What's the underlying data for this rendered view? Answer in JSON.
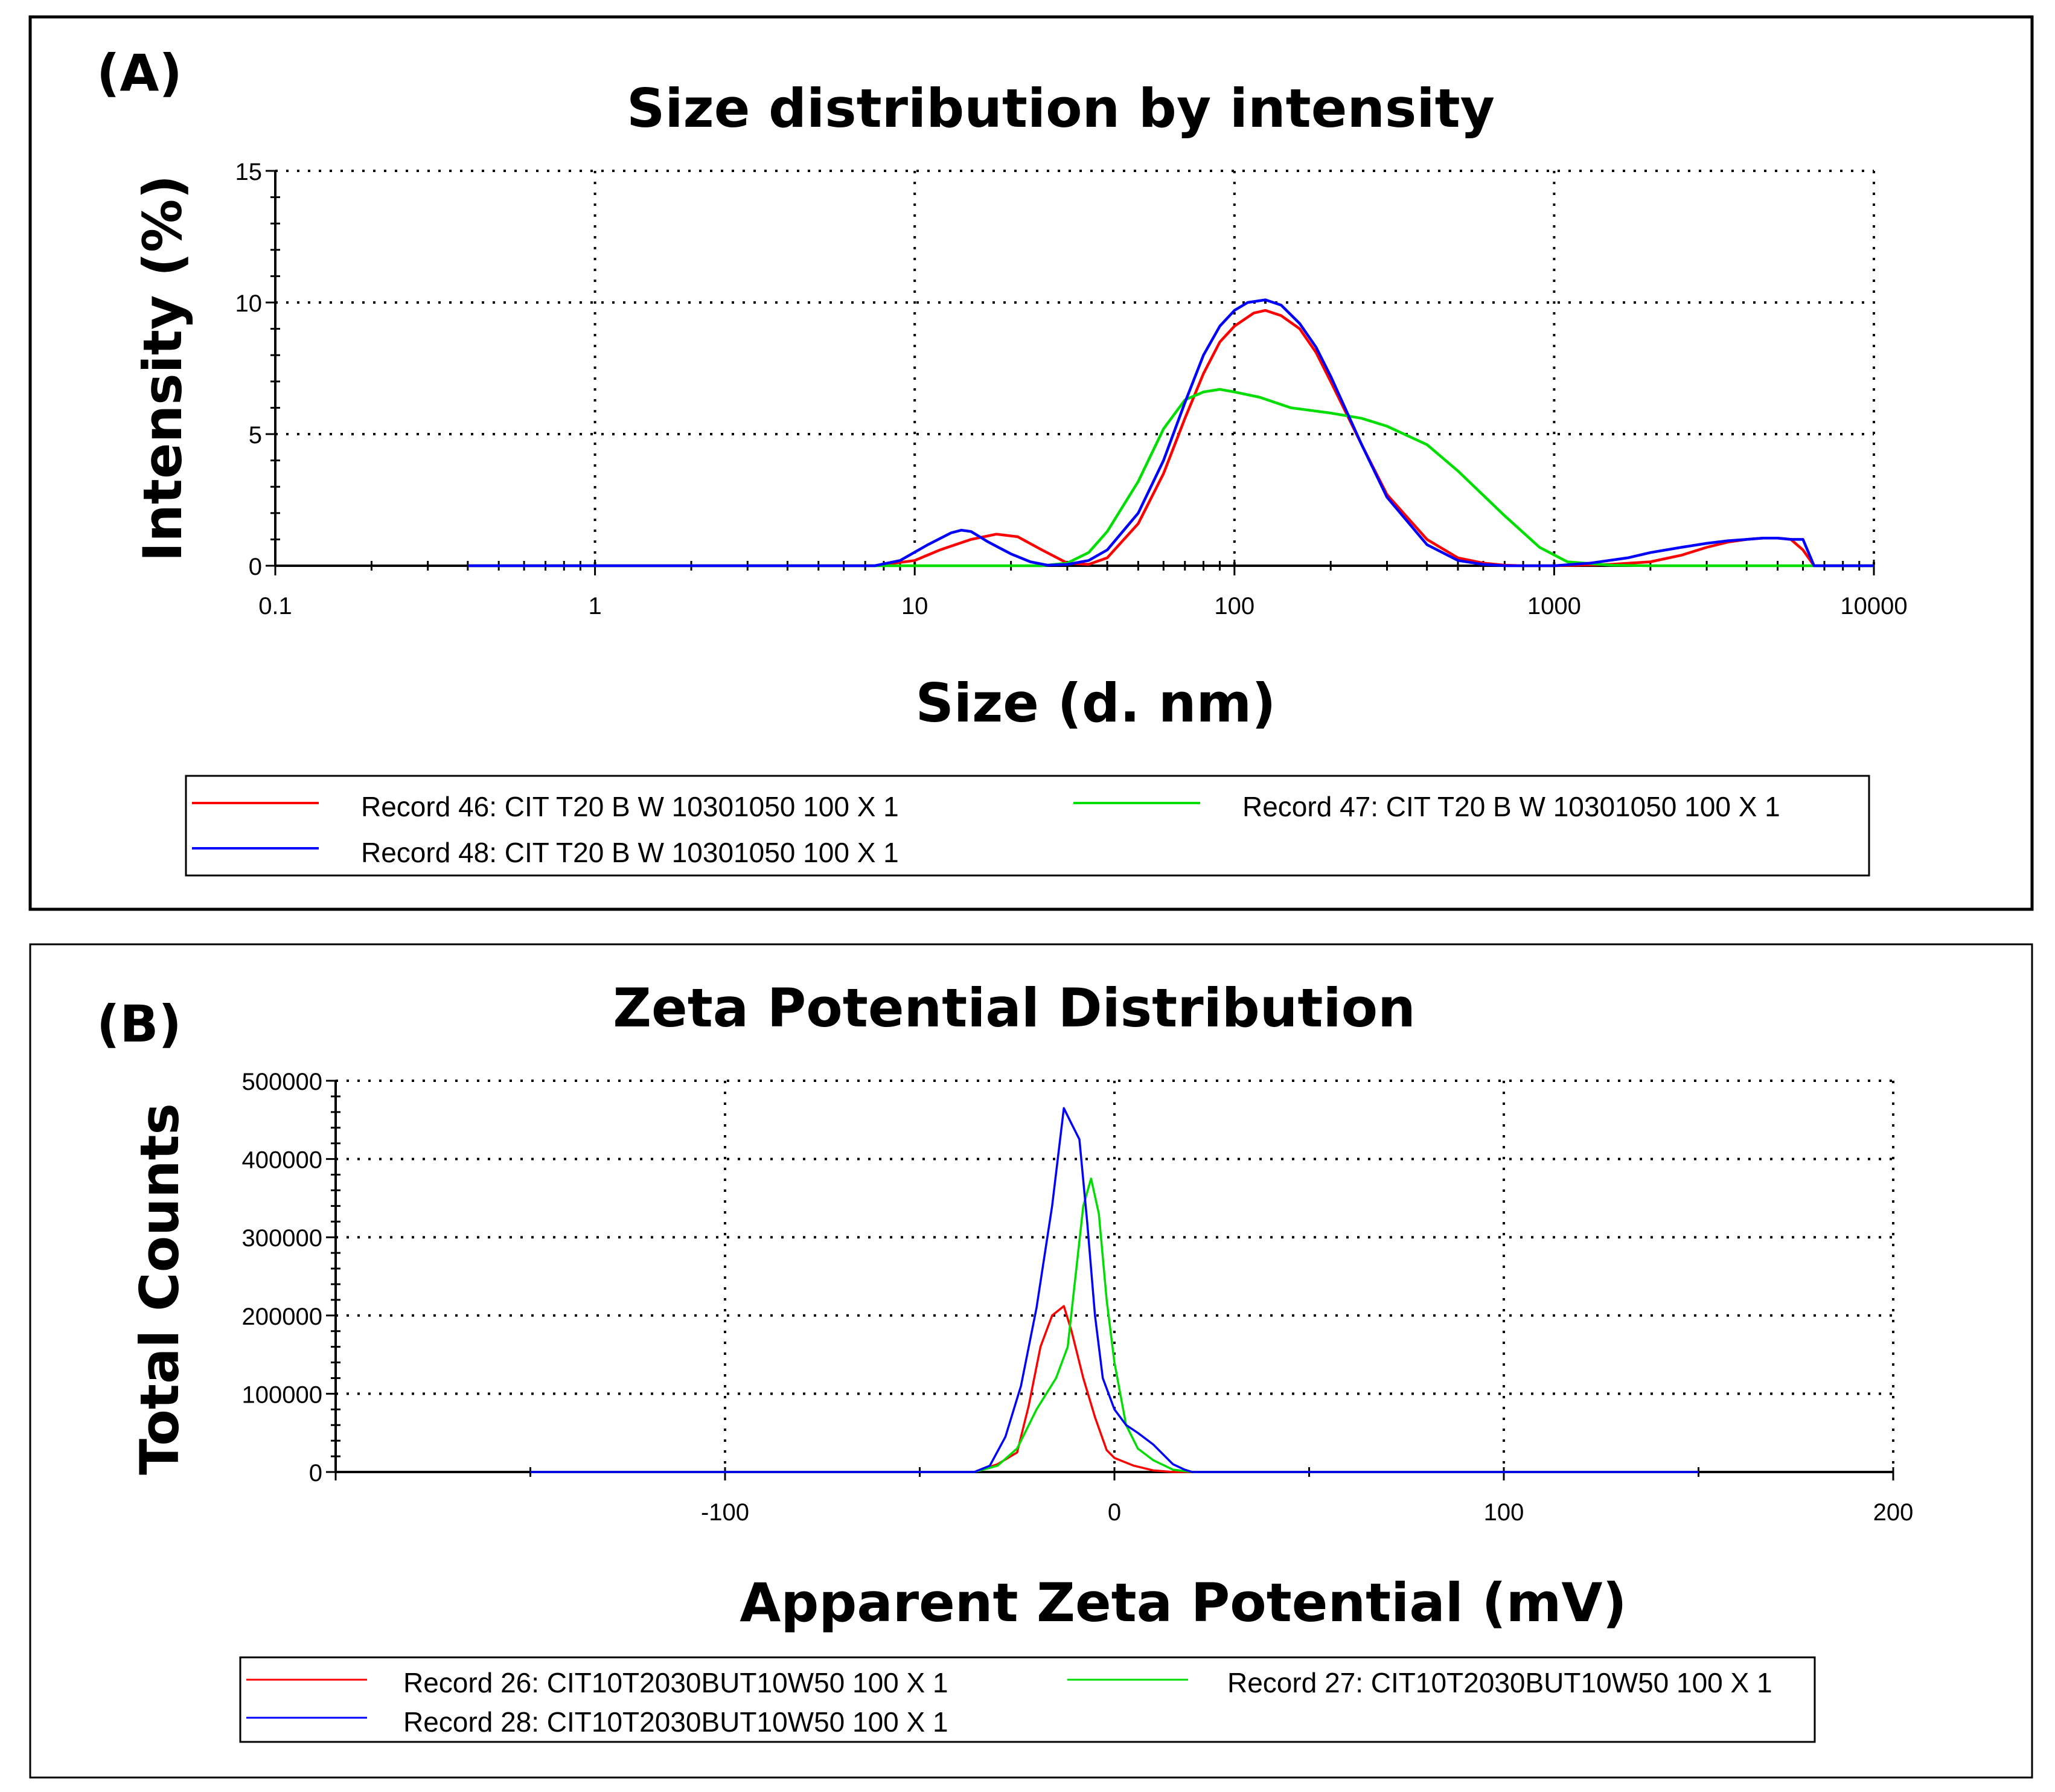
{
  "colors": {
    "red": "#ff0000",
    "green": "#00dd00",
    "blue": "#0000ff"
  },
  "chart_data": [
    {
      "type": "line",
      "panel_label": "(A)",
      "title": "Size distribution by intensity",
      "xlabel": "Size (d. nm)",
      "ylabel": "Intensity (%)",
      "xscale": "log",
      "xlim": [
        0.1,
        10000
      ],
      "ylim": [
        0,
        15
      ],
      "xticks": [
        0.1,
        1,
        10,
        100,
        1000,
        10000
      ],
      "xtick_labels": [
        "0.1",
        "1",
        "10",
        "100",
        "1000",
        "10000"
      ],
      "yticks": [
        0,
        5,
        10,
        15
      ],
      "ytick_labels": [
        "0",
        "5",
        "10",
        "15"
      ],
      "grid": true,
      "series": [
        {
          "name": "Record 46: CIT T20 B W 10301050 100 X  1",
          "color": "red",
          "x": [
            0.4,
            7.5,
            10,
            12,
            15,
            18,
            21,
            25,
            30,
            35,
            40,
            50,
            60,
            70,
            80,
            90,
            100,
            115,
            125,
            140,
            160,
            180,
            200,
            250,
            300,
            400,
            500,
            600,
            700,
            800,
            1000,
            1500,
            2000,
            2500,
            3000,
            3500,
            4000,
            4500,
            5000,
            5500,
            6000,
            6500,
            10000
          ],
          "y": [
            0,
            0,
            0.2,
            0.6,
            1.0,
            1.2,
            1.1,
            0.6,
            0.1,
            0.05,
            0.3,
            1.6,
            3.5,
            5.6,
            7.3,
            8.5,
            9.1,
            9.6,
            9.7,
            9.5,
            9.0,
            8.1,
            7.0,
            4.6,
            2.7,
            1.0,
            0.3,
            0.1,
            0.02,
            0,
            0,
            0.05,
            0.15,
            0.4,
            0.7,
            0.9,
            1.0,
            1.05,
            1.05,
            1.0,
            0.6,
            0,
            0
          ]
        },
        {
          "name": "Record 47: CIT T20 B W 10301050 100 X  1",
          "color": "green",
          "x": [
            0.4,
            25,
            30,
            35,
            40,
            50,
            60,
            70,
            80,
            90,
            100,
            120,
            150,
            200,
            250,
            300,
            400,
            500,
            700,
            900,
            1100,
            1500,
            2000,
            10000
          ],
          "y": [
            0,
            0,
            0.1,
            0.5,
            1.3,
            3.2,
            5.2,
            6.3,
            6.6,
            6.7,
            6.6,
            6.4,
            6.0,
            5.8,
            5.6,
            5.3,
            4.6,
            3.6,
            1.9,
            0.7,
            0.15,
            0.02,
            0,
            0
          ]
        },
        {
          "name": "Record 48: CIT T20 B W 10301050 100 X  1",
          "color": "blue",
          "x": [
            0.4,
            7.5,
            9,
            11,
            13,
            14,
            15,
            17,
            20,
            23,
            26,
            30,
            35,
            40,
            50,
            60,
            70,
            80,
            90,
            100,
            110,
            125,
            140,
            160,
            180,
            200,
            250,
            300,
            400,
            500,
            600,
            700,
            800,
            1000,
            1300,
            1700,
            2000,
            2500,
            3000,
            3500,
            4000,
            4500,
            5000,
            5500,
            6000,
            6500,
            10000
          ],
          "y": [
            0,
            0,
            0.2,
            0.8,
            1.25,
            1.35,
            1.3,
            0.9,
            0.45,
            0.15,
            0.02,
            0.05,
            0.2,
            0.6,
            2.0,
            4.0,
            6.2,
            8.0,
            9.1,
            9.7,
            10.0,
            10.1,
            9.9,
            9.2,
            8.3,
            7.2,
            4.6,
            2.6,
            0.8,
            0.2,
            0.05,
            0,
            0,
            0,
            0.1,
            0.3,
            0.5,
            0.7,
            0.85,
            0.95,
            1.0,
            1.05,
            1.05,
            1.0,
            1.0,
            0,
            0
          ]
        }
      ],
      "legend": {
        "placement": "bottom",
        "columns": 2
      }
    },
    {
      "type": "line",
      "panel_label": "(B)",
      "title": "Zeta Potential Distribution",
      "xlabel": "Apparent Zeta Potential (mV)",
      "ylabel": "Total Counts",
      "xlim": [
        -200,
        200
      ],
      "ylim": [
        0,
        500000
      ],
      "xticks": [
        -100,
        0,
        100,
        200
      ],
      "xtick_labels": [
        "-100",
        "0",
        "100",
        "200"
      ],
      "yticks": [
        0,
        100000,
        200000,
        300000,
        400000,
        500000
      ],
      "ytick_labels": [
        "0",
        "100000",
        "200000",
        "300000",
        "400000",
        "500000"
      ],
      "grid": true,
      "series": [
        {
          "name": "Record 26: CIT10T2030BUT10W50 100 X 1",
          "color": "red",
          "x": [
            -150,
            -36,
            -30,
            -25,
            -22,
            -19,
            -16,
            -13,
            -11,
            -8,
            -5,
            -2,
            0,
            5,
            10,
            15,
            150
          ],
          "y": [
            0,
            0,
            10000,
            25000,
            85000,
            160000,
            200000,
            212000,
            180000,
            120000,
            70000,
            28000,
            18000,
            8000,
            2000,
            0,
            0
          ]
        },
        {
          "name": "Record 27: CIT10T2030BUT10W50 100 X 1",
          "color": "green",
          "x": [
            -150,
            -36,
            -30,
            -25,
            -20,
            -15,
            -12,
            -10,
            -8,
            -6,
            -4,
            -2,
            0,
            3,
            6,
            10,
            15,
            20,
            150
          ],
          "y": [
            0,
            0,
            8000,
            30000,
            80000,
            120000,
            160000,
            250000,
            340000,
            375000,
            330000,
            220000,
            140000,
            60000,
            30000,
            15000,
            3000,
            0,
            0
          ]
        },
        {
          "name": "Record 28: CIT10T2030BUT10W50 100 X 1",
          "color": "blue",
          "x": [
            -150,
            -36,
            -32,
            -28,
            -24,
            -20,
            -16,
            -13,
            -11,
            -9,
            -7,
            -5,
            -3,
            0,
            3,
            6,
            10,
            15,
            18,
            20,
            150
          ],
          "y": [
            0,
            0,
            8000,
            45000,
            110000,
            210000,
            340000,
            465000,
            445000,
            425000,
            320000,
            200000,
            120000,
            80000,
            60000,
            50000,
            35000,
            10000,
            3000,
            0,
            0
          ]
        }
      ],
      "legend": {
        "placement": "bottom",
        "columns": 2
      }
    }
  ]
}
